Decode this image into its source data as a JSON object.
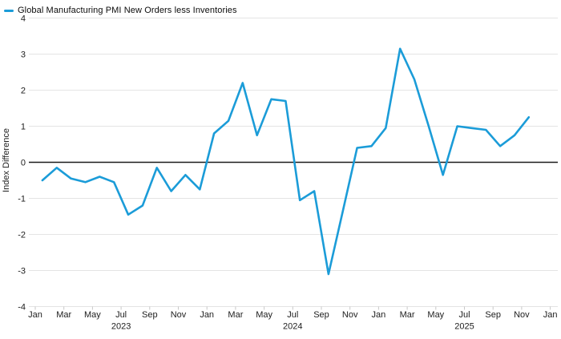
{
  "legend": {
    "label": "Global Manufacturing PMI New Orders less Inventories"
  },
  "colors": {
    "line": "#1B9CD8",
    "zero_line": "#1A1A1A",
    "gridline": "#E4E4E4",
    "tick_mark": "#C8C8C8",
    "text": "#1D1D1D",
    "background": "#FFFFFF"
  },
  "chart_data": {
    "type": "line",
    "series_name": "Global Manufacturing PMI New Orders less Inventories",
    "xlabel": "",
    "ylabel": "Index Difference",
    "ylim": [
      -4,
      4
    ],
    "y_ticks": [
      4,
      3,
      2,
      1,
      0,
      -1,
      -2,
      -3,
      -4
    ],
    "grid": true,
    "legend_position": "top-left",
    "x": [
      "Jan 2023",
      "Feb 2023",
      "Mar 2023",
      "Apr 2023",
      "May 2023",
      "Jun 2023",
      "Jul 2023",
      "Aug 2023",
      "Sep 2023",
      "Oct 2023",
      "Nov 2023",
      "Dec 2023",
      "Jan 2024",
      "Feb 2024",
      "Mar 2024",
      "Apr 2024",
      "May 2024",
      "Jun 2024",
      "Jul 2024",
      "Aug 2024",
      "Sep 2024",
      "Oct 2024",
      "Nov 2024",
      "Dec 2024",
      "Jan 2025",
      "Feb 2025",
      "Mar 2025",
      "Apr 2025",
      "May 2025",
      "Jun 2025",
      "Jul 2025",
      "Aug 2025",
      "Sep 2025",
      "Oct 2025",
      "Nov 2025"
    ],
    "values": [
      -0.5,
      -0.15,
      -0.45,
      -0.55,
      -0.4,
      -0.55,
      -1.45,
      -1.2,
      -0.15,
      -0.8,
      -0.35,
      -0.75,
      0.8,
      1.15,
      2.2,
      0.75,
      1.75,
      1.7,
      -1.05,
      -0.8,
      -3.1,
      -1.35,
      0.4,
      0.45,
      0.95,
      3.15,
      2.3,
      1.0,
      -0.35,
      1.0,
      0.95,
      0.9,
      0.45,
      0.75,
      1.25
    ],
    "x_ticks": [
      {
        "label": "Jan",
        "year": ""
      },
      {
        "label": "Mar",
        "year": ""
      },
      {
        "label": "May",
        "year": ""
      },
      {
        "label": "Jul",
        "year": "2023"
      },
      {
        "label": "Sep",
        "year": ""
      },
      {
        "label": "Nov",
        "year": ""
      },
      {
        "label": "Jan",
        "year": ""
      },
      {
        "label": "Mar",
        "year": ""
      },
      {
        "label": "May",
        "year": ""
      },
      {
        "label": "Jul",
        "year": "2024"
      },
      {
        "label": "Sep",
        "year": ""
      },
      {
        "label": "Nov",
        "year": ""
      },
      {
        "label": "Jan",
        "year": ""
      },
      {
        "label": "Mar",
        "year": ""
      },
      {
        "label": "May",
        "year": ""
      },
      {
        "label": "Jul",
        "year": "2025"
      },
      {
        "label": "Sep",
        "year": ""
      },
      {
        "label": "Nov",
        "year": ""
      },
      {
        "label": "Jan",
        "year": ""
      }
    ]
  }
}
